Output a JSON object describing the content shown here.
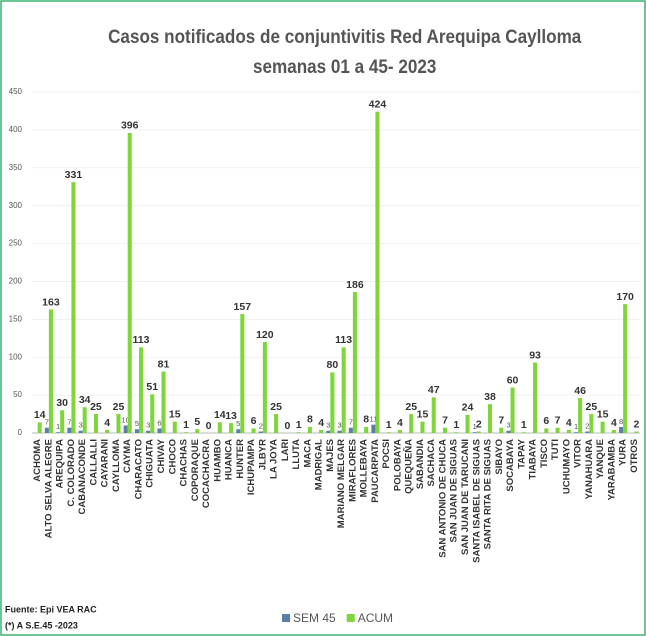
{
  "chart_data": {
    "type": "bar",
    "title": "Casos notificados de conjuntivitis Red Arequipa Caylloma",
    "subtitle": "semanas 01 a 45- 2023",
    "categories": [
      "ACHOMA",
      "ALTO SELVA ALEGRE",
      "AREQUIPA",
      "C. COLORADO",
      "CABANACONDE",
      "CALLALLI",
      "CAYARANI",
      "CAYLLOMA",
      "CAYMA",
      "CHARACATO",
      "CHIGUATA",
      "CHIVAY",
      "CHOCO",
      "CHACHAS",
      "COPORAQUE",
      "COCACHACRA",
      "HUAMBO",
      "HUANCA",
      "HUNTER",
      "ICHUPAMPA",
      "JLBYR",
      "LA JOYA",
      "LARI",
      "LLUTA",
      "MACA",
      "MADRIGAL",
      "MAJES",
      "MARIANO MELGAR",
      "MIRAFLORES",
      "MOLLEBAYA",
      "PAUCARPATA",
      "POCSI",
      "POLOBAYA",
      "QUEQUEÑA",
      "SABANDIA",
      "SACHACA",
      "SAN ANTONIO DE CHUCA",
      "SAN JUAN DE SIGUAS",
      "SAN JUAN DE TARUCANI",
      "SANTA ISABEL DE SIGUAS",
      "SANTA RITA DE SIGUAS",
      "SIBAYO",
      "SOCABAYA",
      "TAPAY",
      "TIABAYA",
      "TISCO",
      "TUTI",
      "UCHUMAYO",
      "VITOR",
      "YANAHUARA",
      "YANQUE",
      "YARABAMBA",
      "YURA",
      "OTROS"
    ],
    "series": [
      {
        "name": "SEM 45",
        "color": "#5b7fa6",
        "values": [
          null,
          7,
          1,
          7,
          3,
          null,
          null,
          null,
          10,
          5,
          3,
          6,
          null,
          null,
          null,
          null,
          null,
          null,
          5,
          null,
          2,
          null,
          null,
          null,
          null,
          null,
          3,
          3,
          7,
          null,
          11,
          null,
          null,
          null,
          null,
          null,
          null,
          null,
          null,
          1,
          null,
          null,
          3,
          null,
          null,
          null,
          null,
          null,
          1,
          2,
          null,
          null,
          8,
          null
        ]
      },
      {
        "name": "ACUM",
        "color": "#7ed63a",
        "values": [
          14,
          163,
          30,
          331,
          34,
          25,
          4,
          25,
          396,
          113,
          51,
          81,
          15,
          1,
          5,
          0,
          14,
          13,
          157,
          6,
          120,
          25,
          0,
          1,
          8,
          4,
          80,
          113,
          186,
          8,
          424,
          1,
          4,
          25,
          15,
          47,
          7,
          1,
          24,
          2,
          38,
          7,
          60,
          1,
          93,
          6,
          7,
          4,
          46,
          25,
          15,
          4,
          170,
          2
        ]
      }
    ],
    "ylim": [
      0,
      450
    ],
    "yticks": [
      0,
      50,
      100,
      150,
      200,
      250,
      300,
      350,
      400,
      450
    ],
    "grid": true,
    "annotations": [
      "Fuente: Epi VEA RAC",
      "(*) A S.E.45 -2023"
    ]
  }
}
